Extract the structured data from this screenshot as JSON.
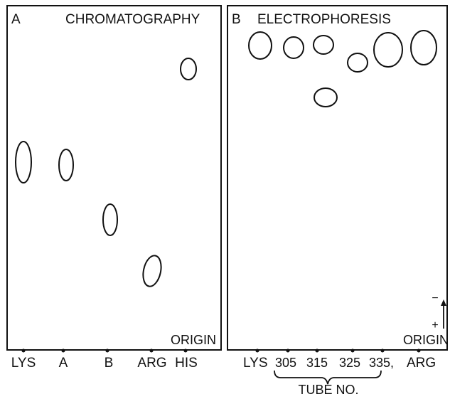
{
  "panel_a": {
    "letter": "A",
    "title": "CHROMATOGRAPHY",
    "origin": "ORIGIN",
    "lanes": [
      "LYS",
      "A",
      "B",
      "ARG",
      "HIS"
    ]
  },
  "panel_b": {
    "letter": "B",
    "title": "ELECTROPHORESIS",
    "origin": "ORIGIN",
    "lanes": [
      "LYS",
      "305",
      "315",
      "325",
      "335,",
      "ARG"
    ],
    "polarity_minus": "−",
    "polarity_plus": "+",
    "group_label": "TUBE NO."
  },
  "colors": {
    "ink": "#111111",
    "background": "#ffffff"
  }
}
